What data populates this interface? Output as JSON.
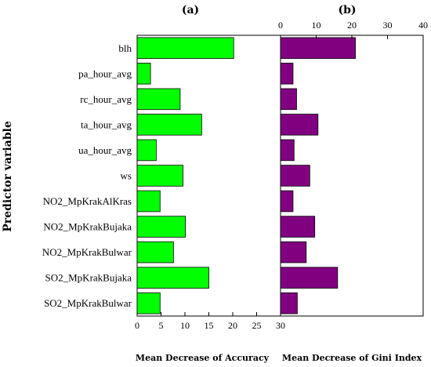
{
  "ylabel": "Predictor variable",
  "chart_data": [
    {
      "type": "bar",
      "orientation": "horizontal",
      "panel_label": "(a)",
      "categories": [
        "blh",
        "pa_hour_avg",
        "rc_hour_avg",
        "ta_hour_avg",
        "ua_hour_avg",
        "ws",
        "NO2_MpKrakAlKras",
        "NO2_MpKrakBujaka",
        "NO2_MpKrakBulwar",
        "SO2_MpKrakBujaka",
        "SO2_MpKrakBulwar"
      ],
      "values": [
        20.2,
        2.8,
        9.0,
        13.5,
        4.0,
        9.6,
        4.8,
        10.1,
        7.6,
        15.0,
        4.8
      ],
      "xlabel": "Mean Decrease of Accuracy",
      "ylabel": "Predictor variable",
      "xlim": [
        0,
        30
      ],
      "xticks": [
        "0",
        "5",
        "10",
        "15",
        "20",
        "25",
        "30"
      ],
      "xaxis_position": "bottom",
      "bar_color": "#00ff00",
      "grid": false
    },
    {
      "type": "bar",
      "orientation": "horizontal",
      "panel_label": "(b)",
      "categories": [
        "blh",
        "pa_hour_avg",
        "rc_hour_avg",
        "ta_hour_avg",
        "ua_hour_avg",
        "ws",
        "NO2_MpKrakAlKras",
        "NO2_MpKrakBujaka",
        "NO2_MpKrakBulwar",
        "SO2_MpKrakBujaka",
        "SO2_MpKrakBulwar"
      ],
      "values": [
        21.0,
        3.5,
        4.5,
        10.5,
        3.8,
        8.2,
        3.5,
        9.6,
        7.2,
        16.0,
        4.7
      ],
      "xlabel": "Mean Decrease of Gini Index",
      "xlim": [
        0,
        40
      ],
      "xticks": [
        "0",
        "10",
        "20",
        "30",
        "40"
      ],
      "xaxis_position": "top",
      "bar_color": "#800080",
      "grid": false
    }
  ]
}
